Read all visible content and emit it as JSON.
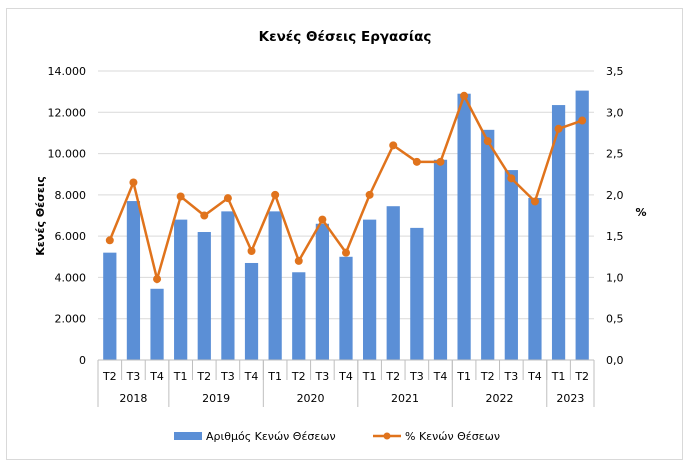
{
  "chart_data": {
    "type": "bar",
    "title": "Κενές Θέσεις Εργασίας",
    "ylabel": "Κενές Θέσεις",
    "y2label": "%",
    "ylim": [
      0,
      14000
    ],
    "y2lim": [
      0,
      3.5
    ],
    "y_ticks": [
      "0",
      "2.000",
      "4.000",
      "6.000",
      "8.000",
      "10.000",
      "12.000",
      "14.000"
    ],
    "y2_ticks": [
      "0,0",
      "0,5",
      "1,0",
      "1,5",
      "2,0",
      "2,5",
      "3,0",
      "3,5"
    ],
    "grid": true,
    "legend_position": "bottom",
    "categories": [
      "T2",
      "T3",
      "T4",
      "T1",
      "T2",
      "T3",
      "T4",
      "T1",
      "T2",
      "T3",
      "T4",
      "T1",
      "T2",
      "T3",
      "T4",
      "T1",
      "T2",
      "T3",
      "T4",
      "T1",
      "T2"
    ],
    "years": [
      {
        "label": "2018",
        "count": 3
      },
      {
        "label": "2019",
        "count": 4
      },
      {
        "label": "2020",
        "count": 4
      },
      {
        "label": "2021",
        "count": 4
      },
      {
        "label": "2022",
        "count": 4
      },
      {
        "label": "2023",
        "count": 2
      }
    ],
    "series": [
      {
        "name": "Αριθμός Κενών Θέσεων",
        "kind": "bar",
        "axis": "left",
        "color": "#5b8fd6",
        "values": [
          5200,
          7700,
          3450,
          6800,
          6200,
          7200,
          4700,
          7200,
          4250,
          6600,
          5000,
          6800,
          7450,
          6400,
          9700,
          12900,
          11150,
          9200,
          7850,
          12350,
          13050
        ]
      },
      {
        "name": "% Κενών Θέσεων",
        "kind": "line",
        "axis": "right",
        "color": "#e0731c",
        "values": [
          1.45,
          2.15,
          0.98,
          1.98,
          1.75,
          1.96,
          1.32,
          2.0,
          1.2,
          1.7,
          1.3,
          2.0,
          2.6,
          2.4,
          2.4,
          3.2,
          2.65,
          2.2,
          1.92,
          2.8,
          2.9
        ]
      }
    ]
  }
}
